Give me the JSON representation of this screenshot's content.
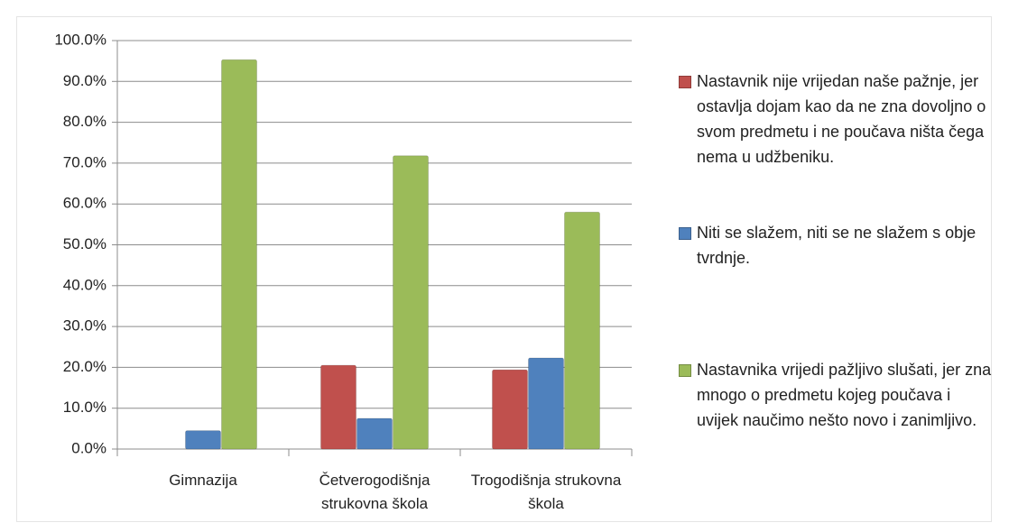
{
  "chart_data": {
    "type": "bar",
    "categories": [
      "Gimnazija",
      "Četverogodišnja strukovna škola",
      "Trogodišnja strukovna škola"
    ],
    "series": [
      {
        "name": "Nastavnik nije vrijedan naše pažnje, jer ostavlja dojam kao da ne zna dovoljno o svom predmetu i ne poučava ništa čega nema u udžbeniku.",
        "color": "#c0504d",
        "values": [
          0,
          20.5,
          19.4
        ]
      },
      {
        "name": "Niti se slažem, niti se ne slažem s obje tvrdnje.",
        "color": "#4f81bd",
        "values": [
          4.5,
          7.5,
          22.3
        ]
      },
      {
        "name": "Nastavnika vrijedi pažljivo slušati, jer zna mnogo o predmetu kojeg poučava i uvijek naučimo nešto novo i zanimljivo.",
        "color": "#9bbb59",
        "values": [
          95.3,
          71.8,
          58.0
        ]
      }
    ],
    "ylim": [
      0,
      100
    ],
    "yticks": [
      {
        "value": 0,
        "label": "0.0%"
      },
      {
        "value": 10,
        "label": "10.0%"
      },
      {
        "value": 20,
        "label": "20.0%"
      },
      {
        "value": 30,
        "label": "30.0%"
      },
      {
        "value": 40,
        "label": "40.0%"
      },
      {
        "value": 50,
        "label": "50.0%"
      },
      {
        "value": 60,
        "label": "60.0%"
      },
      {
        "value": 70,
        "label": "70.0%"
      },
      {
        "value": 80,
        "label": "80.0%"
      },
      {
        "value": 90,
        "label": "90.0%"
      },
      {
        "value": 100,
        "label": "100.0%"
      }
    ],
    "grid": true,
    "legend": "right"
  }
}
